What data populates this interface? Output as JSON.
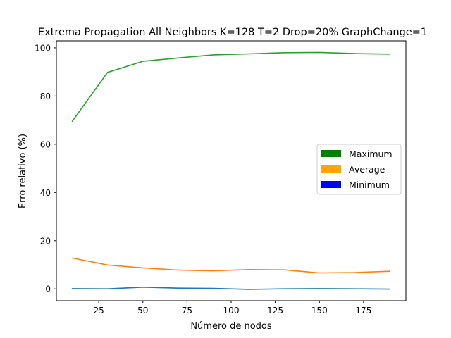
{
  "chart_data": {
    "type": "line",
    "title": "Extrema Propagation All Neighbors K=128 T=2  Drop=20% GraphChange=1",
    "xlabel": "Número de nodos",
    "ylabel": "Erro relativo (%)",
    "xlim": [
      1,
      199
    ],
    "ylim": [
      -4.9,
      102.9
    ],
    "xticks": [
      25,
      50,
      75,
      100,
      125,
      150,
      175
    ],
    "yticks": [
      0,
      20,
      40,
      60,
      80,
      100
    ],
    "grid": false,
    "legend_position": "center-right",
    "x": [
      10,
      30,
      50,
      70,
      90,
      110,
      130,
      150,
      170,
      190
    ],
    "series": [
      {
        "name": "Maximum",
        "line_color": "#2ca02c",
        "legend_color": "#008000",
        "values": [
          69.5,
          89.8,
          94.4,
          95.8,
          97.1,
          97.5,
          98.0,
          98.1,
          97.6,
          97.4
        ]
      },
      {
        "name": "Average",
        "line_color": "#ff7f0e",
        "legend_color": "#ffa500",
        "values": [
          12.8,
          9.9,
          8.7,
          7.8,
          7.5,
          8.0,
          7.9,
          6.6,
          6.8,
          7.3
        ]
      },
      {
        "name": "Minimum",
        "line_color": "#1f77b4",
        "legend_color": "#0000ff",
        "values": [
          0.1,
          0.0,
          0.7,
          0.3,
          0.2,
          -0.2,
          0.0,
          0.1,
          0.0,
          -0.1
        ]
      }
    ]
  }
}
